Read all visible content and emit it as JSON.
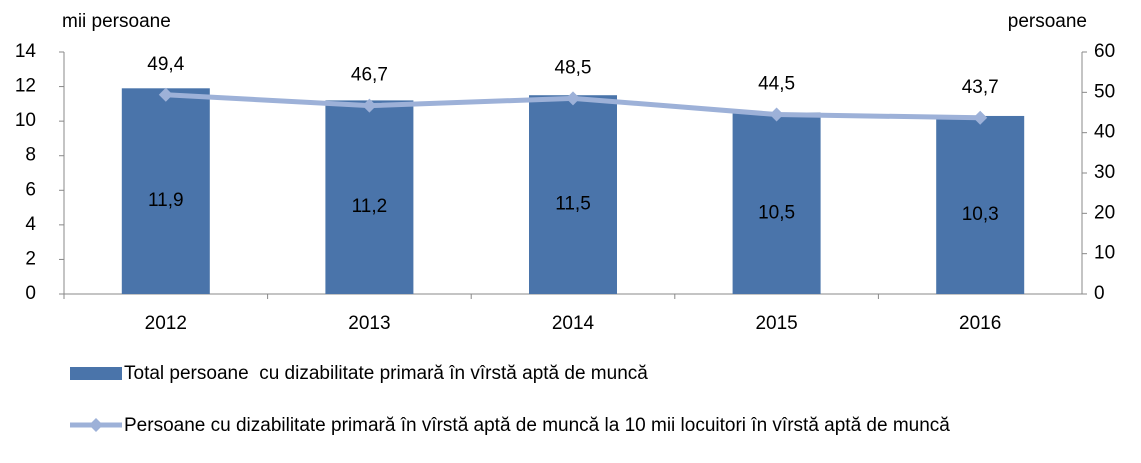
{
  "chart_data": {
    "type": "combo",
    "y_label": "mii persoane",
    "y2_label": "persoane",
    "categories": [
      "2012",
      "2013",
      "2014",
      "2015",
      "2016"
    ],
    "series": [
      {
        "name": "Total persoane  cu dizabilitate primară în vîrstă aptă de muncă",
        "type": "bar",
        "color": "#4a74aa",
        "values": [
          11.9,
          11.2,
          11.5,
          10.5,
          10.3
        ],
        "value_labels": [
          "11,9",
          "11,2",
          "11,5",
          "10,5",
          "10,3"
        ]
      },
      {
        "name": "Persoane cu dizabilitate primară în vîrstă aptă de muncă la 10 mii locuitori în vîrstă aptă de muncă",
        "type": "line",
        "axis": "y2",
        "color": "#9db1d8",
        "values": [
          49.4,
          46.7,
          48.5,
          44.5,
          43.7
        ],
        "value_labels": [
          "49,4",
          "46,7",
          "48,5",
          "44,5",
          "43,7"
        ]
      }
    ],
    "ylim": [
      0,
      14
    ],
    "yticks": [
      0,
      2,
      4,
      6,
      8,
      10,
      12,
      14
    ],
    "y2lim": [
      0,
      60
    ],
    "y2ticks": [
      0,
      10,
      20,
      30,
      40,
      50,
      60
    ],
    "grid": false
  }
}
